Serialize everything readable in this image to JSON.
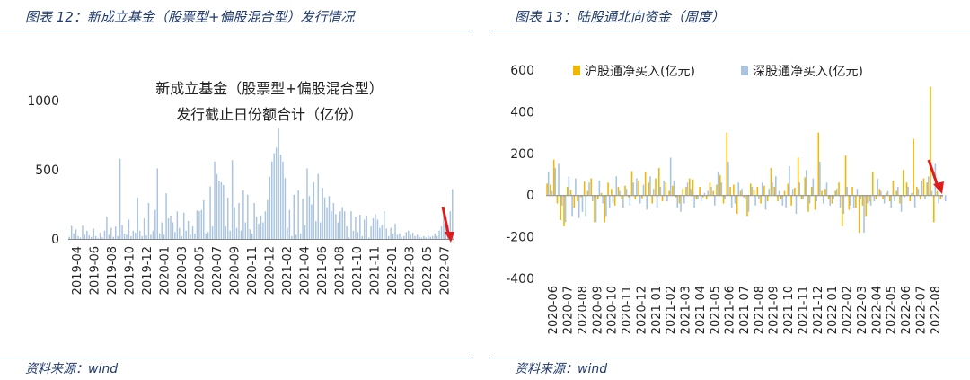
{
  "left": {
    "figure_title": "图表 12：新成立基金（股票型+偏股混合型）发行情况",
    "source": "资料来源：wind",
    "chart_data": {
      "type": "bar",
      "title_line1": "新成立基金（股票型+偏股混合型）",
      "title_line2": "发行截止日份额合计（亿份）",
      "ylim": [
        0,
        1000
      ],
      "yticks": [
        "0",
        "500",
        "1000"
      ],
      "xtick_labels": [
        "2019-04",
        "2019-06",
        "2019-08",
        "2019-10",
        "2019-12",
        "2020-01",
        "2020-03",
        "2020-05",
        "2020-07",
        "2020-09",
        "2020-11",
        "2020-12",
        "2021-02",
        "2021-04",
        "2021-06",
        "2021-08",
        "2021-10",
        "2021-11",
        "2022-01",
        "2022-03",
        "2022-05",
        "2022-07"
      ],
      "series": [
        {
          "color": "#a9c4e0",
          "values": [
            15,
            95,
            40,
            70,
            20,
            10,
            95,
            30,
            60,
            25,
            15,
            75,
            20,
            5,
            45,
            10,
            60,
            160,
            30,
            80,
            15,
            90,
            20,
            580,
            100,
            40,
            30,
            140,
            20,
            60,
            45,
            300,
            60,
            20,
            150,
            25,
            260,
            30,
            60,
            210,
            510,
            40,
            120,
            30,
            330,
            150,
            170,
            120,
            50,
            200,
            80,
            20,
            190,
            60,
            130,
            30,
            90,
            40,
            205,
            200,
            210,
            280,
            40,
            50,
            380,
            90,
            560,
            470,
            420,
            410,
            390,
            90,
            300,
            60,
            570,
            230,
            80,
            260,
            60,
            350,
            120,
            320,
            70,
            40,
            260,
            160,
            110,
            170,
            120,
            200,
            280,
            450,
            560,
            620,
            660,
            800,
            610,
            560,
            440,
            80,
            210,
            20,
            320,
            30,
            350,
            40,
            290,
            100,
            510,
            310,
            250,
            410,
            130,
            470,
            120,
            370,
            300,
            230,
            310,
            200,
            260,
            180,
            120,
            200,
            230,
            200,
            90,
            10,
            200,
            60,
            160,
            50,
            175,
            20,
            140,
            170,
            10,
            90,
            150,
            180,
            140,
            80,
            100,
            200,
            75,
            20,
            80,
            40,
            110,
            30,
            40,
            10,
            20,
            50,
            60,
            30,
            45,
            20,
            30,
            15,
            10,
            20,
            10,
            25,
            15,
            20,
            40,
            20,
            60,
            90,
            170,
            150,
            100,
            200,
            360
          ]
        }
      ],
      "grid": false
    }
  },
  "right": {
    "figure_title": "图表 13：陆股通北向资金（周度）",
    "source": "资料来源：wind",
    "chart_data": {
      "type": "bar",
      "ylim": [
        -400,
        600
      ],
      "yticks": [
        "-400",
        "-200",
        "0",
        "200",
        "400",
        "600"
      ],
      "xtick_labels": [
        "2020-06",
        "2020-07",
        "2020-08",
        "2020-09",
        "2020-10",
        "2020-11",
        "2020-12",
        "2021-01",
        "2021-02",
        "2021-03",
        "2021-04",
        "2021-05",
        "2021-06",
        "2021-07",
        "2021-08",
        "2021-09",
        "2021-10",
        "2021-11",
        "2021-12",
        "2022-01",
        "2022-02",
        "2022-03",
        "2022-04",
        "2022-05",
        "2022-06",
        "2022-07",
        "2022-08"
      ],
      "legend_position": "top",
      "series": [
        {
          "name": "沪股通净买入(亿元)",
          "color": "#f2b705",
          "values": [
            55,
            50,
            170,
            -40,
            -120,
            -150,
            40,
            25,
            -60,
            -30,
            -10,
            65,
            20,
            80,
            -130,
            -20,
            10,
            -130,
            60,
            30,
            -50,
            40,
            -20,
            45,
            -10,
            115,
            -20,
            70,
            -15,
            110,
            60,
            -40,
            80,
            130,
            -30,
            60,
            20,
            45,
            -10,
            -40,
            30,
            40,
            80,
            75,
            -20,
            40,
            -10,
            -20,
            60,
            20,
            50,
            95,
            -40,
            300,
            40,
            50,
            -90,
            20,
            -10,
            -100,
            55,
            25,
            40,
            -40,
            45,
            -30,
            130,
            40,
            -30,
            -20,
            20,
            55,
            -50,
            35,
            180,
            -20,
            85,
            -80,
            40,
            -70,
            300,
            20,
            30,
            -20,
            -40,
            20,
            60,
            -150,
            190,
            -70,
            40,
            -60,
            -180,
            -50,
            -100,
            -30,
            110,
            -20,
            30,
            -20,
            10,
            -30,
            70,
            20,
            -40,
            120,
            60,
            -30,
            270,
            40,
            -20,
            80,
            60,
            520,
            -130,
            20,
            -20
          ]
        },
        {
          "name": "深股通净买入(亿元)",
          "color": "#a9c4e0",
          "values": [
            110,
            20,
            130,
            150,
            -50,
            -130,
            90,
            -100,
            80,
            -110,
            -80,
            -100,
            60,
            -30,
            -130,
            70,
            -40,
            -100,
            -60,
            -40,
            90,
            20,
            -60,
            30,
            -50,
            60,
            80,
            -40,
            50,
            -70,
            90,
            30,
            -60,
            40,
            70,
            -30,
            180,
            70,
            -60,
            -80,
            -40,
            60,
            30,
            -60,
            -20,
            -30,
            10,
            20,
            40,
            -50,
            110,
            60,
            -20,
            160,
            -60,
            -40,
            60,
            30,
            -20,
            -80,
            40,
            -50,
            -20,
            60,
            -70,
            30,
            60,
            90,
            20,
            -50,
            -60,
            140,
            30,
            -90,
            60,
            -20,
            120,
            -40,
            80,
            -30,
            160,
            -40,
            60,
            -50,
            -20,
            30,
            -60,
            -90,
            40,
            -50,
            -60,
            30,
            -20,
            -180,
            -40,
            -50,
            -30,
            80,
            20,
            -40,
            20,
            -60,
            -30,
            40,
            -80,
            -10,
            40,
            10,
            -60,
            30,
            70,
            -20,
            90,
            20,
            150,
            -40,
            -10,
            -30
          ]
        }
      ],
      "grid": false
    }
  }
}
